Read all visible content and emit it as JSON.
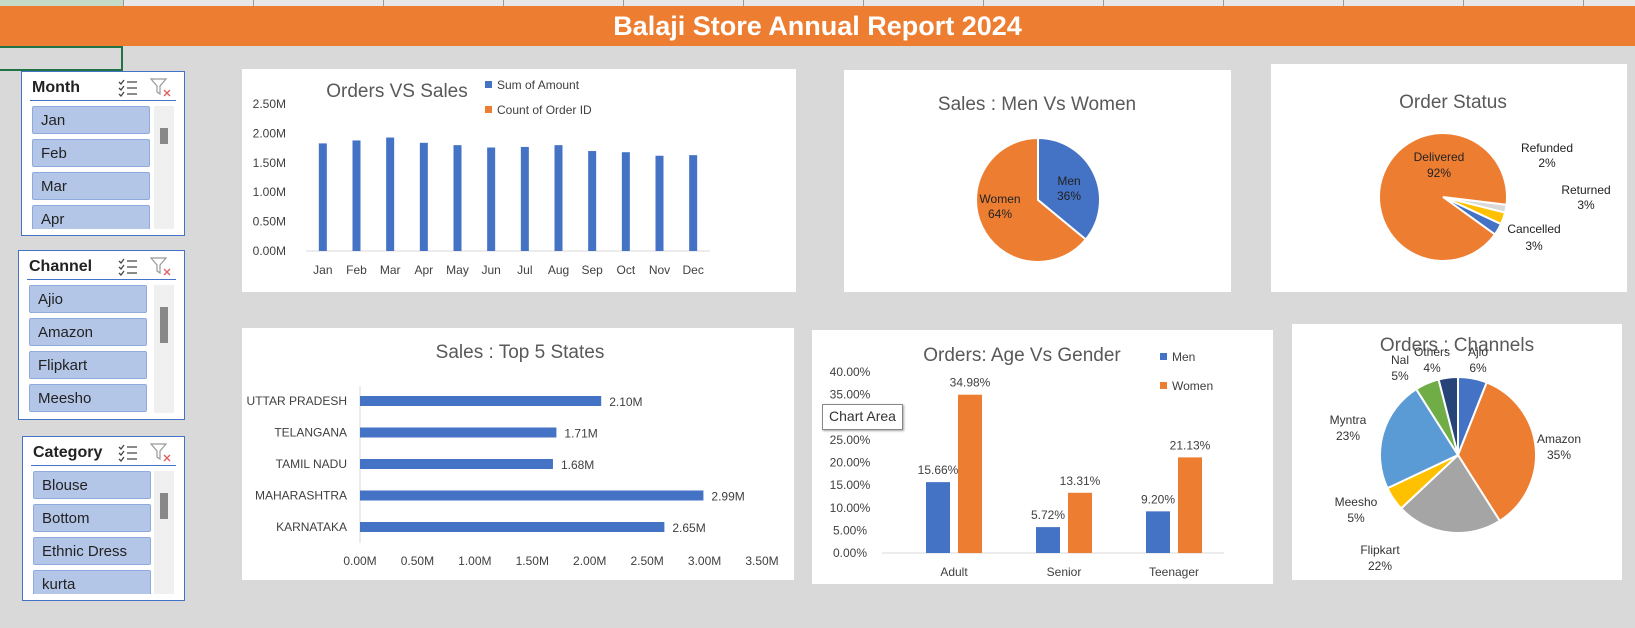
{
  "report_title": "Balaji  Store Annual Report 2024",
  "slicers": {
    "month": {
      "title": "Month",
      "items": [
        "Jan",
        "Feb",
        "Mar",
        "Apr"
      ]
    },
    "channel": {
      "title": "Channel",
      "items": [
        "Ajio",
        "Amazon",
        "Flipkart",
        "Meesho"
      ]
    },
    "category": {
      "title": "Category",
      "items": [
        "Blouse",
        "Bottom",
        "Ethnic Dress",
        "kurta"
      ]
    }
  },
  "tooltip": "Chart Area",
  "icons": [
    "multi-select-icon",
    "clear-filter-icon"
  ],
  "colors": {
    "orange": "#ed7d31",
    "blue": "#4472c4",
    "gray": "#a5a5a5",
    "gold": "#ffc000",
    "lightblue": "#5b9bd5",
    "green": "#70ad47",
    "navy": "#264478"
  },
  "chart_data": [
    {
      "type": "bar",
      "title": "Orders VS Sales",
      "categories": [
        "Jan",
        "Feb",
        "Mar",
        "Apr",
        "May",
        "Jun",
        "Jul",
        "Aug",
        "Sep",
        "Oct",
        "Nov",
        "Dec"
      ],
      "series": [
        {
          "name": "Sum of Amount",
          "values": [
            1.83,
            1.88,
            1.93,
            1.84,
            1.8,
            1.76,
            1.77,
            1.8,
            1.7,
            1.68,
            1.62,
            1.63
          ]
        },
        {
          "name": "Count of Order ID",
          "values": [
            0,
            0,
            0,
            0,
            0,
            0,
            0,
            0,
            0,
            0,
            0,
            0
          ]
        }
      ],
      "ylim": [
        0,
        2.5
      ],
      "yticks": [
        "0.00M",
        "0.50M",
        "1.00M",
        "1.50M",
        "2.00M",
        "2.50M"
      ],
      "legend": "top"
    },
    {
      "type": "pie",
      "title": "Sales : Men Vs Women",
      "labels": [
        "Men",
        "Women"
      ],
      "values": [
        36,
        64
      ],
      "display": [
        "36%",
        "64%"
      ]
    },
    {
      "type": "pie",
      "title": "Order Status",
      "labels": [
        "Delivered",
        "Refunded",
        "Returned",
        "Cancelled"
      ],
      "values": [
        92,
        2,
        3,
        3
      ],
      "display": [
        "92%",
        "2%",
        "3%",
        "3%"
      ]
    },
    {
      "type": "bar",
      "orientation": "horizontal",
      "title": "Sales : Top 5 States",
      "categories": [
        "UTTAR PRADESH",
        "TELANGANA",
        "TAMIL NADU",
        "MAHARASHTRA",
        "KARNATAKA"
      ],
      "values": [
        2.1,
        1.71,
        1.68,
        2.99,
        2.65
      ],
      "value_labels": [
        "2.10M",
        "1.71M",
        "1.68M",
        "2.99M",
        "2.65M"
      ],
      "xlim": [
        0,
        3.5
      ],
      "xticks": [
        "0.00M",
        "0.50M",
        "1.00M",
        "1.50M",
        "2.00M",
        "2.50M",
        "3.00M",
        "3.50M"
      ]
    },
    {
      "type": "bar",
      "title": "Orders: Age Vs Gender",
      "categories": [
        "Adult",
        "Senior",
        "Teenager"
      ],
      "series": [
        {
          "name": "Men",
          "values": [
            15.66,
            5.72,
            9.2
          ],
          "labels": [
            "15.66%",
            "5.72%",
            "9.20%"
          ]
        },
        {
          "name": "Women",
          "values": [
            34.98,
            13.31,
            21.13
          ],
          "labels": [
            "34.98%",
            "13.31%",
            "21.13%"
          ]
        }
      ],
      "ylim": [
        0,
        40
      ],
      "yticks": [
        "0.00%",
        "5.00%",
        "10.00%",
        "15.00%",
        "20.00%",
        "25.00%",
        "30.00%",
        "35.00%",
        "40.00%"
      ],
      "legend": "top-right"
    },
    {
      "type": "pie",
      "title": "Orders : Channels",
      "labels": [
        "Ajio",
        "Amazon",
        "Flipkart",
        "Meesho",
        "Myntra",
        "Nal",
        "Others"
      ],
      "values": [
        6,
        35,
        22,
        5,
        23,
        5,
        4
      ],
      "display": [
        "6%",
        "35%",
        "22%",
        "5%",
        "23%",
        "5%",
        "4%"
      ]
    }
  ]
}
